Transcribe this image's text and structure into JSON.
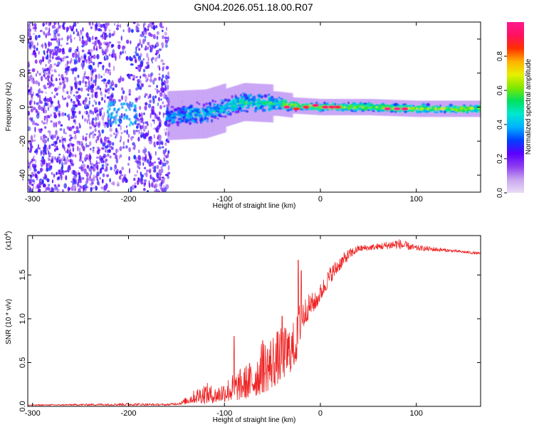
{
  "title": "GN04.2026.051.18.00.R07",
  "chart_data": [
    {
      "type": "heatmap",
      "name": "spectrogram",
      "xlabel": "Height of straight line (km)",
      "ylabel": "Frequency (Hz)",
      "xlim": [
        -305,
        167
      ],
      "ylim": [
        -50,
        50
      ],
      "xticks": [
        -300,
        -200,
        -100,
        0,
        100
      ],
      "yticks": [
        -40,
        -20,
        0,
        20,
        40
      ],
      "colorbar": {
        "label": "Normalized spectral amplitude",
        "range": [
          0,
          1
        ],
        "ticks": [
          "0.0",
          "0.2",
          "0.4",
          "0.6",
          "0.8"
        ],
        "tick_values": [
          0.0,
          0.2,
          0.4,
          0.6,
          0.8
        ],
        "colors": [
          "#eadcf6",
          "#c9a6ee",
          "#8e3ef0",
          "#5a00ff",
          "#0040ff",
          "#00b0ff",
          "#00e8d0",
          "#00e060",
          "#80e800",
          "#e8f000",
          "#ffb000",
          "#ff3000",
          "#ff1060",
          "#ff1a8c"
        ]
      },
      "features": {
        "noise_region_x": [
          -305,
          -158
        ],
        "noise_gap_x": [
          -218,
          -192
        ],
        "signal_center_freq": [
          [
            -160,
            -5
          ],
          [
            -120,
            -4
          ],
          [
            -80,
            3
          ],
          [
            -45,
            2
          ],
          [
            -30,
            1
          ],
          [
            0,
            0
          ],
          [
            50,
            0
          ],
          [
            100,
            -1
          ],
          [
            167,
            -1
          ]
        ],
        "hot_spots": [
          {
            "x": -35,
            "f": 0,
            "amp": 0.95
          },
          {
            "x": -25,
            "f": -1,
            "amp": 0.85
          },
          {
            "x": -15,
            "f": 0,
            "amp": 0.9
          },
          {
            "x": -5,
            "f": 1,
            "amp": 0.95
          },
          {
            "x": 5,
            "f": 0,
            "amp": 0.95
          },
          {
            "x": 12,
            "f": 0,
            "amp": 0.95
          },
          {
            "x": 18,
            "f": 0,
            "amp": 0.9
          },
          {
            "x": 70,
            "f": -1,
            "amp": 1.0
          },
          {
            "x": 80,
            "f": -1,
            "amp": 1.0
          },
          {
            "x": 88,
            "f": -1,
            "amp": 0.95
          }
        ]
      }
    },
    {
      "type": "line",
      "name": "snr",
      "xlabel": "Height of straight line (km)",
      "ylabel": "SNR (10 * v/v)",
      "multiplier_label": "(x10",
      "multiplier_exp": "4",
      "xlim": [
        -305,
        167
      ],
      "ylim": [
        0,
        1.95
      ],
      "xticks": [
        -300,
        -200,
        -100,
        0,
        100
      ],
      "yticks": [
        "0.0",
        "0.5",
        "1.0",
        "1.5"
      ],
      "ytick_values": [
        0.0,
        0.5,
        1.0,
        1.5
      ],
      "color": "#ee2222",
      "envelope": [
        [
          -305,
          0.01,
          0.02
        ],
        [
          -250,
          0.01,
          0.03
        ],
        [
          -200,
          0.01,
          0.04
        ],
        [
          -160,
          0.01,
          0.03
        ],
        [
          -145,
          0.02,
          0.06
        ],
        [
          -130,
          0.04,
          0.2
        ],
        [
          -120,
          0.03,
          0.28
        ],
        [
          -110,
          0.04,
          0.22
        ],
        [
          -100,
          0.05,
          0.3
        ],
        [
          -90,
          0.06,
          0.38
        ],
        [
          -80,
          0.08,
          0.46
        ],
        [
          -70,
          0.1,
          0.55
        ],
        [
          -60,
          0.15,
          0.75
        ],
        [
          -50,
          0.2,
          0.85
        ],
        [
          -40,
          0.3,
          0.9
        ],
        [
          -30,
          0.4,
          0.95
        ],
        [
          -25,
          0.5,
          1.0
        ],
        [
          -20,
          0.8,
          1.3
        ],
        [
          -15,
          0.95,
          1.25
        ],
        [
          -10,
          1.05,
          1.3
        ],
        [
          -5,
          1.1,
          1.3
        ],
        [
          0,
          1.2,
          1.4
        ],
        [
          10,
          1.4,
          1.6
        ],
        [
          20,
          1.55,
          1.72
        ],
        [
          30,
          1.68,
          1.8
        ],
        [
          40,
          1.77,
          1.84
        ],
        [
          60,
          1.79,
          1.86
        ],
        [
          80,
          1.8,
          1.92
        ],
        [
          100,
          1.78,
          1.84
        ],
        [
          120,
          1.77,
          1.82
        ],
        [
          140,
          1.76,
          1.79
        ],
        [
          167,
          1.73,
          1.76
        ]
      ],
      "spikes": [
        [
          -23,
          1.67
        ],
        [
          -40,
          1.03
        ],
        [
          -20,
          1.55
        ],
        [
          -90,
          0.8
        ],
        [
          -60,
          0.75
        ]
      ]
    }
  ]
}
